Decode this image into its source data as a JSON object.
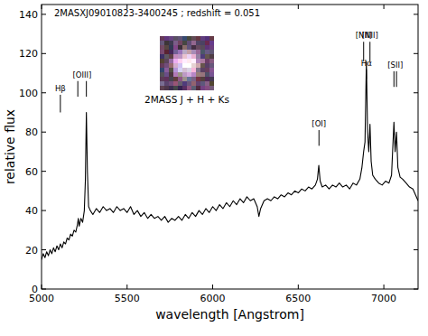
{
  "chart_data": {
    "type": "line",
    "title": "2MASXJ09010823-3400245 ; redshift = 0.051",
    "x_label": "wavelength [Angstrom]",
    "y_label": "relative flux",
    "inset_caption": "2MASS J + H + Ks",
    "color": "#000000",
    "xlim": [
      5000,
      7200
    ],
    "ylim": [
      0,
      145
    ],
    "xticks": [
      5000,
      5500,
      6000,
      6500,
      7000
    ],
    "yticks": [
      0,
      20,
      40,
      60,
      80,
      100,
      120,
      140
    ],
    "grid": false,
    "x": [
      5000,
      5010,
      5020,
      5030,
      5040,
      5050,
      5060,
      5070,
      5080,
      5090,
      5100,
      5110,
      5120,
      5130,
      5140,
      5150,
      5160,
      5170,
      5180,
      5190,
      5200,
      5210,
      5215,
      5220,
      5230,
      5240,
      5250,
      5256,
      5262,
      5268,
      5275,
      5285,
      5300,
      5320,
      5340,
      5360,
      5380,
      5400,
      5420,
      5440,
      5460,
      5480,
      5500,
      5520,
      5540,
      5560,
      5580,
      5600,
      5620,
      5640,
      5660,
      5680,
      5700,
      5720,
      5740,
      5760,
      5780,
      5800,
      5820,
      5840,
      5860,
      5880,
      5900,
      5920,
      5940,
      5960,
      5980,
      6000,
      6020,
      6040,
      6060,
      6080,
      6100,
      6120,
      6140,
      6160,
      6180,
      6200,
      6220,
      6240,
      6260,
      6270,
      6280,
      6300,
      6320,
      6340,
      6360,
      6380,
      6400,
      6420,
      6440,
      6460,
      6480,
      6500,
      6520,
      6540,
      6560,
      6580,
      6600,
      6612,
      6620,
      6628,
      6640,
      6660,
      6680,
      6700,
      6720,
      6740,
      6760,
      6780,
      6800,
      6820,
      6840,
      6860,
      6872,
      6882,
      6890,
      6898,
      6905,
      6912,
      6919,
      6926,
      6935,
      6950,
      6970,
      6990,
      7010,
      7030,
      7045,
      7059,
      7066,
      7074,
      7082,
      7095,
      7110,
      7130,
      7150,
      7170,
      7185,
      7200
    ],
    "values": [
      15,
      18,
      16,
      19,
      17,
      20,
      18,
      21,
      19,
      22,
      20,
      23,
      21,
      24,
      23,
      26,
      25,
      28,
      27,
      30,
      29,
      33,
      36,
      32,
      36,
      34,
      40,
      55,
      90,
      60,
      42,
      40,
      38,
      41,
      39,
      42,
      40,
      41,
      39,
      42,
      40,
      41,
      39,
      42,
      38,
      40,
      37,
      39,
      36,
      38,
      36,
      37,
      35,
      37,
      34,
      36,
      35,
      37,
      35,
      38,
      36,
      39,
      37,
      40,
      38,
      41,
      39,
      42,
      40,
      43,
      41,
      44,
      42,
      45,
      43,
      46,
      44,
      47,
      45,
      46,
      42,
      37,
      41,
      45,
      46,
      45,
      47,
      46,
      48,
      47,
      49,
      48,
      50,
      49,
      51,
      50,
      52,
      51,
      53,
      56,
      63,
      55,
      52,
      53,
      51,
      53,
      52,
      54,
      52,
      53,
      51,
      54,
      53,
      56,
      62,
      70,
      75,
      116,
      80,
      70,
      84,
      65,
      58,
      56,
      54,
      53,
      55,
      54,
      58,
      85,
      70,
      80,
      62,
      57,
      56,
      54,
      52,
      51,
      48,
      45
    ],
    "annotations": [
      {
        "label": "Hβ",
        "x": [
          5110
        ],
        "y": [
          90,
          99
        ]
      },
      {
        "label": "[OIII]",
        "x": [
          5212,
          5262
        ],
        "y": [
          98,
          106
        ]
      },
      {
        "label": "[OI]",
        "x": [
          6621
        ],
        "y": [
          73,
          81
        ]
      },
      {
        "label": "[NII]",
        "x": [
          6882
        ],
        "y": [
          116,
          126
        ]
      },
      {
        "label": "Hα",
        "x": [
          6898
        ],
        "y": [
          107,
          112
        ]
      },
      {
        "label": "[NII]",
        "x": [
          6919
        ],
        "y": [
          116,
          126
        ]
      },
      {
        "label": "[SII]",
        "x": [
          7059,
          7074
        ],
        "y": [
          103,
          111
        ]
      }
    ]
  }
}
